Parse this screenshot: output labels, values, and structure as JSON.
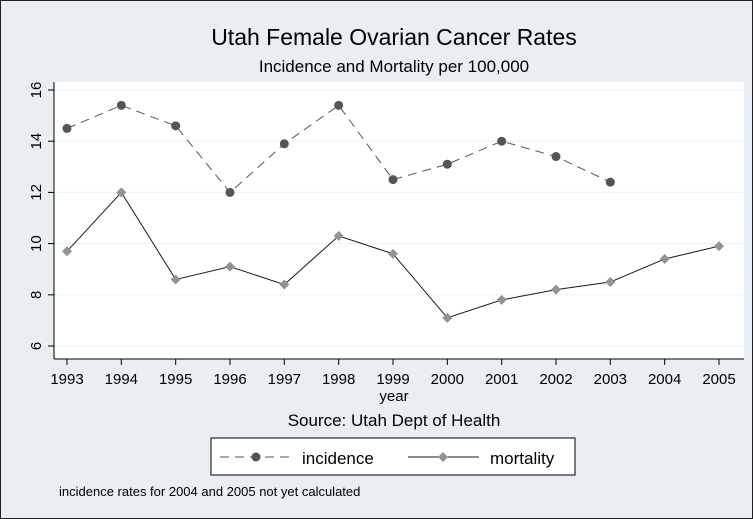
{
  "chart_data": {
    "type": "line",
    "title": "Utah Female Ovarian Cancer Rates",
    "subtitle": "Incidence and Mortality per 100,000",
    "xlabel": "year",
    "ylabel": "",
    "note": "Source: Utah Dept of Health",
    "footnote": "incidence rates for 2004 and 2005 not yet calculated",
    "x": [
      1993,
      1994,
      1995,
      1996,
      1997,
      1998,
      1999,
      2000,
      2001,
      2002,
      2003,
      2004,
      2005
    ],
    "xlim": [
      1993,
      2005
    ],
    "ylim": [
      6,
      16
    ],
    "yticks": [
      6,
      8,
      10,
      12,
      14,
      16
    ],
    "grid": true,
    "legend_position": "bottom",
    "series": [
      {
        "name": "incidence",
        "values": [
          14.5,
          15.4,
          14.6,
          12.0,
          13.9,
          15.4,
          12.5,
          13.1,
          14.0,
          13.4,
          12.4,
          null,
          null
        ],
        "color": "#555555",
        "line_style": "dashed",
        "marker": "circle"
      },
      {
        "name": "mortality",
        "values": [
          9.7,
          12.0,
          8.6,
          9.1,
          8.4,
          10.3,
          9.6,
          7.1,
          7.8,
          8.2,
          8.5,
          9.4,
          9.9
        ],
        "color": "#1a1a1a",
        "marker_color": "#939393",
        "line_style": "solid",
        "marker": "diamond"
      }
    ]
  }
}
